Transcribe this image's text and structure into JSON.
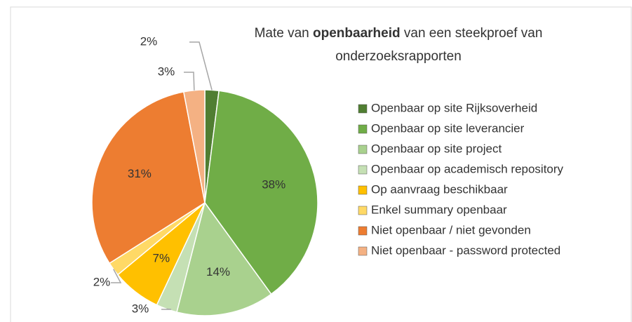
{
  "chart_data": {
    "type": "pie",
    "title": [
      "Mate van",
      "openbaarheid",
      "van een steekproef van",
      "onderzoeksrapporten"
    ],
    "categories": [
      "Openbaar op site Rijksoverheid",
      "Openbaar op site leverancier",
      "Openbaar op site project",
      "Openbaar op academisch repository",
      "Op aanvraag beschikbaar",
      "Enkel summary openbaar",
      "Niet openbaar / niet gevonden",
      "Niet openbaar - password protected"
    ],
    "values": [
      2,
      38,
      14,
      3,
      7,
      2,
      31,
      3
    ],
    "value_labels": [
      "2%",
      "38%",
      "14%",
      "3%",
      "7%",
      "2%",
      "31%",
      "3%"
    ],
    "colors": [
      "#507e32",
      "#70ad47",
      "#a9d18e",
      "#c5e0b4",
      "#ffc000",
      "#ffd966",
      "#ed7d31",
      "#f4b183"
    ],
    "legend": "right"
  }
}
